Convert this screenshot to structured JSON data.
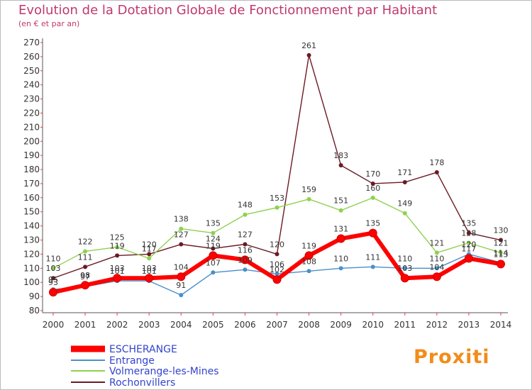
{
  "header": {
    "title": "Evolution de la Dotation Globale de Fonctionnement par Habitant",
    "subtitle": "(en € et par an)"
  },
  "brand": {
    "text": "Proxiti"
  },
  "chart_data": {
    "type": "line",
    "title": "Evolution de la Dotation Globale de Fonctionnement par Habitant",
    "subtitle": "(en € et par an)",
    "xlabel": "",
    "ylabel": "",
    "ylim": [
      80,
      270
    ],
    "grid": false,
    "legend_position": "bottom-left",
    "categories": [
      "2000",
      "2001",
      "2002",
      "2003",
      "2004",
      "2005",
      "2006",
      "2007",
      "2008",
      "2009",
      "2010",
      "2011",
      "2012",
      "2013",
      "2014"
    ],
    "y_ticks": [
      "80",
      "90",
      "100",
      "110",
      "120",
      "130",
      "140",
      "150",
      "160",
      "170",
      "180",
      "190",
      "200",
      "210",
      "220",
      "230",
      "240",
      "250",
      "260",
      "270"
    ],
    "series": [
      {
        "name": "ESCHERANGE",
        "color": "#ff0000",
        "values": [
          93,
          98,
          103,
          103,
          104,
          119,
          116,
          102,
          119,
          131,
          135,
          103,
          104,
          117,
          113
        ],
        "labels": [
          "93",
          "98",
          "103",
          "103",
          "104",
          "119",
          "116",
          "102",
          "119",
          "131",
          "135",
          "103",
          "104",
          "117",
          "113"
        ]
      },
      {
        "name": "Entrange",
        "color": "#4a8fcb",
        "values": [
          95,
          97,
          101,
          101,
          91,
          107,
          109,
          106,
          108,
          110,
          111,
          110,
          110,
          120,
          114
        ],
        "labels": [
          "95",
          "97",
          "101",
          "101",
          "91",
          "107",
          "109",
          "106",
          "108",
          "110",
          "111",
          "110",
          "110",
          "120",
          "114"
        ]
      },
      {
        "name": "Volmerange-les-Mines",
        "color": "#8ed14e",
        "values": [
          110,
          122,
          125,
          117,
          138,
          135,
          148,
          153,
          159,
          151,
          160,
          149,
          121,
          128,
          121
        ],
        "labels": [
          "110",
          "122",
          "125",
          "117",
          "138",
          "135",
          "148",
          "153",
          "159",
          "151",
          "160",
          "149",
          "121",
          "128",
          "121"
        ]
      },
      {
        "name": "Rochonvillers",
        "color": "#6b1a24",
        "values": [
          103,
          111,
          119,
          120,
          127,
          124,
          127,
          120,
          261,
          183,
          170,
          171,
          178,
          135,
          130
        ],
        "labels": [
          "103",
          "111",
          "119",
          "120",
          "127",
          "124",
          "127",
          "120",
          "261",
          "183",
          "170",
          "171",
          "178",
          "135",
          "130"
        ]
      }
    ]
  }
}
